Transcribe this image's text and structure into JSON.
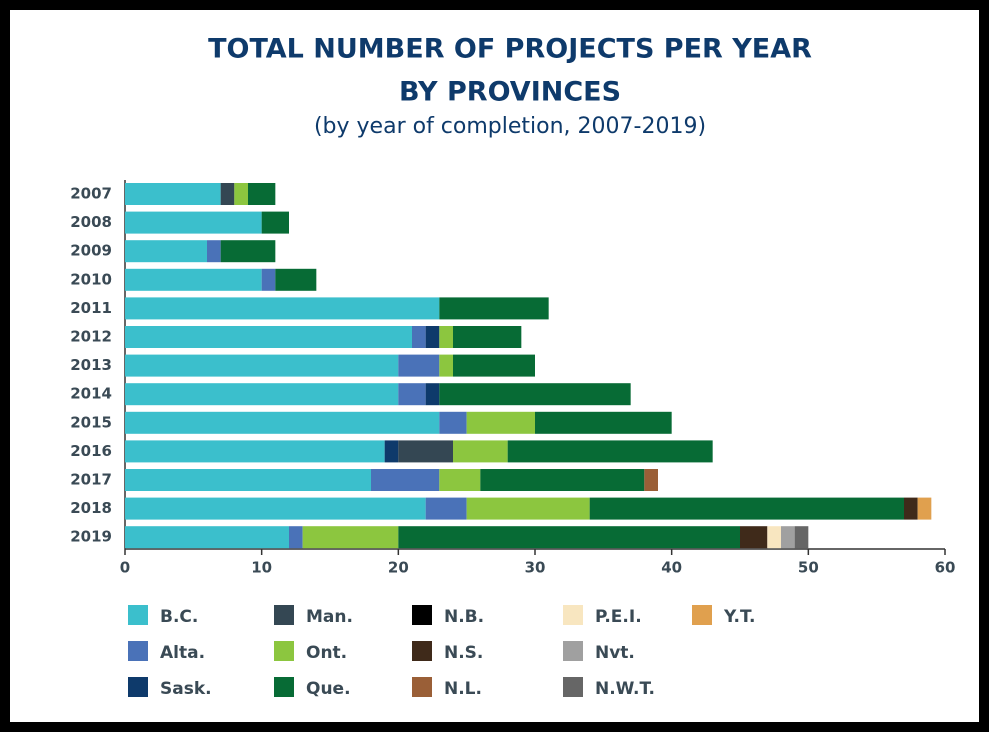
{
  "chart_data": {
    "type": "stacked_bar_horizontal",
    "title": [
      "TOTAL NUMBER OF PROJECTS PER YEAR",
      "BY PROVINCES"
    ],
    "subtitle": "(by year of completion, 2007-2019)",
    "categories": [
      "2007",
      "2008",
      "2009",
      "2010",
      "2011",
      "2012",
      "2013",
      "2014",
      "2015",
      "2016",
      "2017",
      "2018",
      "2019"
    ],
    "xlim": [
      0,
      60
    ],
    "xticks": [
      0,
      10,
      20,
      30,
      40,
      50,
      60
    ],
    "grid": false,
    "legend": "bottom",
    "series": [
      {
        "name": "B.C.",
        "color": "#3bbfcc",
        "values": [
          7,
          10,
          6,
          10,
          23,
          21,
          20,
          20,
          23,
          19,
          18,
          22,
          12
        ]
      },
      {
        "name": "Alta.",
        "color": "#4a72b8",
        "values": [
          0,
          0,
          1,
          1,
          0,
          1,
          3,
          2,
          2,
          0,
          5,
          3,
          1
        ]
      },
      {
        "name": "Sask.",
        "color": "#0e3a6b",
        "values": [
          0,
          0,
          0,
          0,
          0,
          1,
          0,
          1,
          0,
          1,
          0,
          0,
          0
        ]
      },
      {
        "name": "Man.",
        "color": "#344753",
        "values": [
          1,
          0,
          0,
          0,
          0,
          0,
          0,
          0,
          0,
          4,
          0,
          0,
          0
        ]
      },
      {
        "name": "Ont.",
        "color": "#8cc63f",
        "values": [
          1,
          0,
          0,
          0,
          0,
          1,
          1,
          0,
          5,
          4,
          3,
          9,
          7
        ]
      },
      {
        "name": "Que.",
        "color": "#076b35",
        "values": [
          2,
          2,
          4,
          3,
          8,
          5,
          6,
          14,
          10,
          15,
          12,
          23,
          25
        ]
      },
      {
        "name": "N.B.",
        "color": "#000000",
        "values": [
          0,
          0,
          0,
          0,
          0,
          0,
          0,
          0,
          0,
          0,
          0,
          0,
          0
        ]
      },
      {
        "name": "N.S.",
        "color": "#3f2a1a",
        "values": [
          0,
          0,
          0,
          0,
          0,
          0,
          0,
          0,
          0,
          0,
          0,
          1,
          2
        ]
      },
      {
        "name": "N.L.",
        "color": "#9a5f37",
        "values": [
          0,
          0,
          0,
          0,
          0,
          0,
          0,
          0,
          0,
          0,
          1,
          0,
          0
        ]
      },
      {
        "name": "P.E.I.",
        "color": "#f8e6c0",
        "values": [
          0,
          0,
          0,
          0,
          0,
          0,
          0,
          0,
          0,
          0,
          0,
          0,
          1
        ]
      },
      {
        "name": "Nvt.",
        "color": "#a0a0a0",
        "values": [
          0,
          0,
          0,
          0,
          0,
          0,
          0,
          0,
          0,
          0,
          0,
          0,
          1
        ]
      },
      {
        "name": "N.W.T.",
        "color": "#666666",
        "values": [
          0,
          0,
          0,
          0,
          0,
          0,
          0,
          0,
          0,
          0,
          0,
          0,
          1
        ]
      },
      {
        "name": "Y.T.",
        "color": "#e0a04e",
        "values": [
          0,
          0,
          0,
          0,
          0,
          0,
          0,
          0,
          0,
          0,
          0,
          1,
          0
        ]
      }
    ]
  }
}
